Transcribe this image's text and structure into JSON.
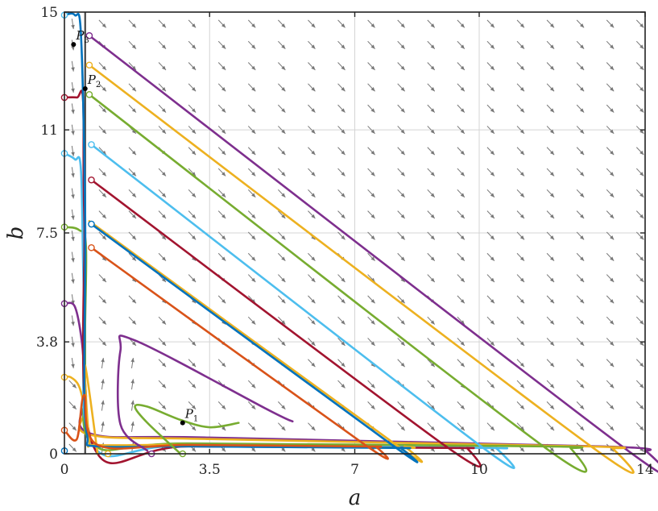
{
  "chart_data": {
    "type": "line",
    "xlabel": "a",
    "ylabel": "b",
    "xlim": [
      0,
      14
    ],
    "ylim": [
      0,
      15
    ],
    "x_ticks": [
      0,
      3.5,
      7,
      10,
      14
    ],
    "y_ticks": [
      0,
      3.8,
      7.5,
      11,
      15
    ],
    "x_tick_labels": [
      "0",
      "3.5",
      "7",
      "10",
      "14"
    ],
    "y_tick_labels": [
      "0",
      "3.8",
      "7.5",
      "11",
      "15"
    ],
    "grid": true,
    "colors": {
      "blue": "#0072BD",
      "orange": "#D95319",
      "yellow": "#EDB120",
      "purple": "#7E2F8E",
      "green": "#77AC30",
      "cyan": "#4DBEEE",
      "red": "#A2142F",
      "quiver": "#777777",
      "nullcline": "#444444"
    },
    "vertical_line_x": 0.5,
    "points": [
      {
        "label": "P",
        "subscript": "1",
        "x": 2.85,
        "y": 1.05
      },
      {
        "label": "P",
        "subscript": "2",
        "x": 0.5,
        "y": 12.4
      },
      {
        "label": "P",
        "subscript": "3",
        "x": 0.22,
        "y": 13.9
      }
    ],
    "series": [
      {
        "color": "purple",
        "points": [
          [
            0.6,
            14.2
          ],
          [
            13.4,
            0.3
          ],
          [
            14.0,
            0.1
          ],
          [
            13.0,
            0.25
          ],
          [
            3.5,
            0.55
          ],
          [
            0.6,
            0.7
          ],
          [
            0.52,
            2.0
          ],
          [
            0.42,
            3.8
          ],
          [
            0.25,
            5.0
          ],
          [
            0,
            5.1
          ]
        ]
      },
      {
        "color": "yellow",
        "points": [
          [
            0.6,
            13.2
          ],
          [
            12.6,
            0.35
          ],
          [
            13.2,
            0.2
          ],
          [
            12.6,
            0.25
          ],
          [
            3.5,
            0.5
          ],
          [
            0.6,
            0.65
          ],
          [
            0.5,
            1.5
          ],
          [
            0.35,
            2.3
          ],
          [
            0.15,
            2.6
          ],
          [
            0,
            2.6
          ]
        ]
      },
      {
        "color": "green",
        "points": [
          [
            0.6,
            12.2
          ],
          [
            11.5,
            0.3
          ],
          [
            12.2,
            0.2
          ],
          [
            11.6,
            0.25
          ],
          [
            3.0,
            0.35
          ],
          [
            0.7,
            0.3
          ],
          [
            0.5,
            3.0
          ],
          [
            0.52,
            7.0
          ],
          [
            0.35,
            7.6
          ],
          [
            0,
            7.7
          ]
        ]
      },
      {
        "color": "cyan",
        "points": [
          [
            0.65,
            10.5
          ],
          [
            10.0,
            0.3
          ],
          [
            10.4,
            0.2
          ],
          [
            10.0,
            0.2
          ],
          [
            3.0,
            0.3
          ],
          [
            0.7,
            0.25
          ],
          [
            0.48,
            5.0
          ],
          [
            0.4,
            9.6
          ],
          [
            0.25,
            10.0
          ],
          [
            0,
            10.2
          ]
        ]
      },
      {
        "color": "red",
        "points": [
          [
            0.65,
            9.3
          ],
          [
            9.2,
            0.25
          ],
          [
            9.7,
            0.2
          ],
          [
            9.2,
            0.2
          ],
          [
            3.0,
            0.25
          ],
          [
            0.7,
            0.25
          ],
          [
            0.48,
            8.0
          ],
          [
            0.45,
            12.0
          ],
          [
            0.3,
            12.1
          ],
          [
            0,
            12.1
          ]
        ]
      },
      {
        "color": "yellow",
        "points": [
          [
            0.6,
            7.9
          ],
          [
            8.0,
            0.3
          ],
          [
            8.2,
            0.25
          ],
          [
            8.0,
            0.2
          ],
          [
            3.0,
            0.3
          ],
          [
            0.8,
            0.3
          ],
          [
            0.6,
            0.5
          ],
          [
            0.5,
            3.0
          ],
          [
            0.8,
            0.0
          ]
        ]
      },
      {
        "color": "blue",
        "points": [
          [
            0.65,
            7.8
          ],
          [
            7.9,
            0.3
          ],
          [
            8.1,
            0.2
          ],
          [
            7.9,
            0.2
          ],
          [
            3.0,
            0.25
          ],
          [
            0.8,
            0.25
          ],
          [
            0.55,
            0.6
          ],
          [
            0.48,
            2.5
          ],
          [
            0.5,
            8.0
          ],
          [
            0.4,
            14.2
          ],
          [
            0.25,
            14.9
          ],
          [
            0,
            14.9
          ]
        ]
      },
      {
        "color": "orange",
        "points": [
          [
            0.65,
            7.0
          ],
          [
            7.2,
            0.35
          ],
          [
            7.5,
            0.25
          ],
          [
            7.2,
            0.25
          ],
          [
            3.0,
            0.3
          ],
          [
            0.8,
            0.3
          ],
          [
            0.48,
            2.0
          ],
          [
            0.3,
            0.5
          ],
          [
            0,
            0.8
          ]
        ]
      },
      {
        "color": "purple",
        "points": [
          [
            5.5,
            1.1
          ],
          [
            4.9,
            1.5
          ],
          [
            1.7,
            3.85
          ],
          [
            1.35,
            3.5
          ],
          [
            1.35,
            1.0
          ],
          [
            2.0,
            0.1
          ]
        ]
      },
      {
        "color": "green",
        "points": [
          [
            4.2,
            1.05
          ],
          [
            3.5,
            0.9
          ],
          [
            2.8,
            1.15
          ],
          [
            2.0,
            1.6
          ],
          [
            1.7,
            1.6
          ],
          [
            2.0,
            1.05
          ],
          [
            2.8,
            0.0
          ]
        ]
      }
    ],
    "starts": [
      {
        "color": "purple",
        "x": 0.6,
        "y": 14.2
      },
      {
        "color": "yellow",
        "x": 0.6,
        "y": 13.2
      },
      {
        "color": "green",
        "x": 0.6,
        "y": 12.2
      },
      {
        "color": "cyan",
        "x": 0.65,
        "y": 10.5
      },
      {
        "color": "red",
        "x": 0.65,
        "y": 9.3
      },
      {
        "color": "blue",
        "x": 0.65,
        "y": 7.8
      },
      {
        "color": "orange",
        "x": 0.65,
        "y": 7.0
      },
      {
        "color": "cyan",
        "x": 0,
        "y": 14.9
      },
      {
        "color": "red",
        "x": 0,
        "y": 12.1
      },
      {
        "color": "cyan",
        "x": 0,
        "y": 10.2
      },
      {
        "color": "green",
        "x": 0,
        "y": 7.7
      },
      {
        "color": "purple",
        "x": 0,
        "y": 5.1
      },
      {
        "color": "yellow",
        "x": 0,
        "y": 2.6
      },
      {
        "color": "orange",
        "x": 0,
        "y": 0.8
      },
      {
        "color": "blue",
        "x": 0,
        "y": 0.1
      },
      {
        "color": "yellow",
        "x": 1.05,
        "y": 0.0
      },
      {
        "color": "purple",
        "x": 2.1,
        "y": 0.0
      },
      {
        "color": "green",
        "x": 2.85,
        "y": 0.0
      }
    ]
  }
}
